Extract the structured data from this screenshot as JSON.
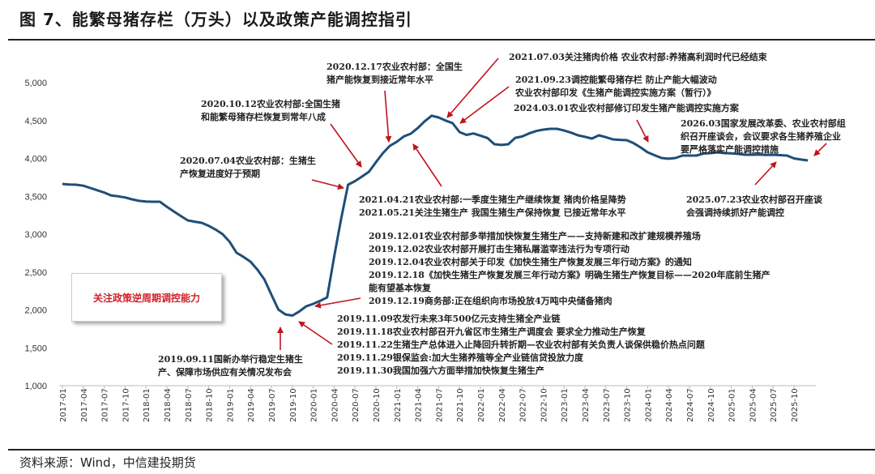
{
  "title": "图 7、能繁母猪存栏（万头）以及政策产能调控指引",
  "source": "资料来源：Wind，中信建投期货",
  "callout_box": "关注政策逆周期调控能力",
  "chart_data": {
    "type": "line",
    "title": "能繁母猪存栏（万头）",
    "ylim": [
      1000,
      5000
    ],
    "yticks": [
      "1,000",
      "1,500",
      "2,000",
      "2,500",
      "3,000",
      "3,500",
      "4,000",
      "4,500",
      "5,000"
    ],
    "ytick_values": [
      1000,
      1500,
      2000,
      2500,
      3000,
      3500,
      4000,
      4500,
      5000
    ],
    "x_start": "2017-01",
    "x_end": "2025-12",
    "xticks": [
      "2017-01",
      "2017-04",
      "2017-07",
      "2017-10",
      "2018-01",
      "2018-04",
      "2018-07",
      "2018-10",
      "2019-01",
      "2019-04",
      "2019-07",
      "2019-10",
      "2020-01",
      "2020-04",
      "2020-07",
      "2020-10",
      "2021-01",
      "2021-04",
      "2021-07",
      "2021-10",
      "2022-01",
      "2022-04",
      "2022-07",
      "2022-10",
      "2023-01",
      "2023-04",
      "2023-07",
      "2023-10",
      "2024-01",
      "2024-04",
      "2024-07",
      "2024-10",
      "2025-01",
      "2025-04",
      "2025-07",
      "2025-10"
    ],
    "grid": false,
    "series": [
      {
        "name": "能繁母猪存栏",
        "color": "#1f4e79",
        "values": [
          3663,
          3655,
          3652,
          3640,
          3610,
          3580,
          3550,
          3510,
          3500,
          3485,
          3460,
          3440,
          3430,
          3428,
          3428,
          3360,
          3300,
          3240,
          3182,
          3165,
          3150,
          3110,
          3060,
          3000,
          2900,
          2754,
          2700,
          2636,
          2530,
          2401,
          2200,
          2005,
          1941,
          1925,
          1980,
          2048,
          2080,
          2120,
          2166,
          2700,
          3200,
          3652,
          3700,
          3760,
          3824,
          3950,
          4070,
          4166,
          4220,
          4290,
          4326,
          4400,
          4490,
          4564,
          4540,
          4500,
          4465,
          4348,
          4310,
          4329,
          4300,
          4270,
          4187,
          4178,
          4187,
          4272,
          4290,
          4330,
          4362,
          4380,
          4390,
          4390,
          4368,
          4340,
          4305,
          4284,
          4262,
          4305,
          4280,
          4251,
          4245,
          4241,
          4200,
          4144,
          4080,
          4042,
          4005,
          3996,
          4005,
          4037,
          4037,
          4037,
          4064,
          4070,
          4080,
          4070,
          4066,
          4059,
          4048,
          4048,
          4050,
          4046,
          4048,
          4043,
          4037,
          4000,
          3985,
          3973
        ]
      }
    ],
    "annotation_color": "#c0141e",
    "annotations": [
      {
        "id": "a20201217",
        "lines": [
          "2020.12.17农业农村部：全国生",
          "猪产能恢复到接近常年水平"
        ]
      },
      {
        "id": "a20201012",
        "lines": [
          "2020.10.12农业农村部:全国生猪",
          "和能繁母猪存栏恢复到常年八成"
        ]
      },
      {
        "id": "a20200704",
        "lines": [
          "2020.07.04农业农村部：生猪生",
          "产恢复进度好于预期"
        ]
      },
      {
        "id": "a20210703",
        "lines": [
          "2021.07.03关注猪肉价格  农业农村部:养猪高利润时代已经结束"
        ]
      },
      {
        "id": "a20210923",
        "lines": [
          "2021.09.23调控能繁母猪存栏  防止产能大幅波动",
          "农业农村部印发《生猪产能调控实施方案（暂行）》"
        ]
      },
      {
        "id": "a20240301",
        "lines": [
          "2024.03.01农业农村部修订印发生猪产能调控实施方案"
        ]
      },
      {
        "id": "a202603",
        "lines": [
          "2026.03国家发展改革委、农业农村部组",
          "织召开座谈会，会议要求各生猪养殖企业",
          "要严格落实产能调控措施"
        ]
      },
      {
        "id": "a20210421",
        "lines": [
          "2021.04.21农业农村部:一季度生猪生产继续恢复  猪肉价格呈降势",
          "2021.05.21关注生猪生产  我国生猪生产保持恢复  已接近常年水平"
        ]
      },
      {
        "id": "a20250723",
        "lines": [
          "2025.07.23农业农村部召开座谈",
          "会强调持续抓好产能调控"
        ]
      },
      {
        "id": "a201912",
        "lines": [
          "2019.12.01农业农村部多举措加快恢复生猪生产——支持新建和改扩建规模养殖场",
          "2019.12.02农业农村部开展打击生猪私屠滥宰违法行为专项行动",
          "2019.12.04农业农村部关于印发《加快生猪生产恢复发展三年行动方案》的通知",
          "2019.12.18《加快生猪生产恢复发展三年行动方案》明确生猪生产恢复目标——2020年底前生猪产",
          "能有望基本恢复",
          "2019.12.19商务部:正在组织向市场投放4万吨中央储备猪肉"
        ]
      },
      {
        "id": "a201911",
        "lines": [
          "2019.11.09农发行未来3年500亿元支持生猪全产业链",
          "2019.11.18农业农村部召开九省区市生猪生产调度会  要求全力推动生产恢复",
          "2019.11.22生猪生产总体进入止降回升转折期—农业农村部有关负责人谈保供稳价热点问题",
          "2019.11.29银保监会:加大生猪养殖等全产业链信贷投放力度",
          "2019.11.30我国加强六方面举措加快恢复生猪生产"
        ]
      },
      {
        "id": "a20190911",
        "lines": [
          "2019.09.11国新办举行稳定生猪生",
          "产、保障市场供应有关情况发布会"
        ]
      }
    ]
  }
}
